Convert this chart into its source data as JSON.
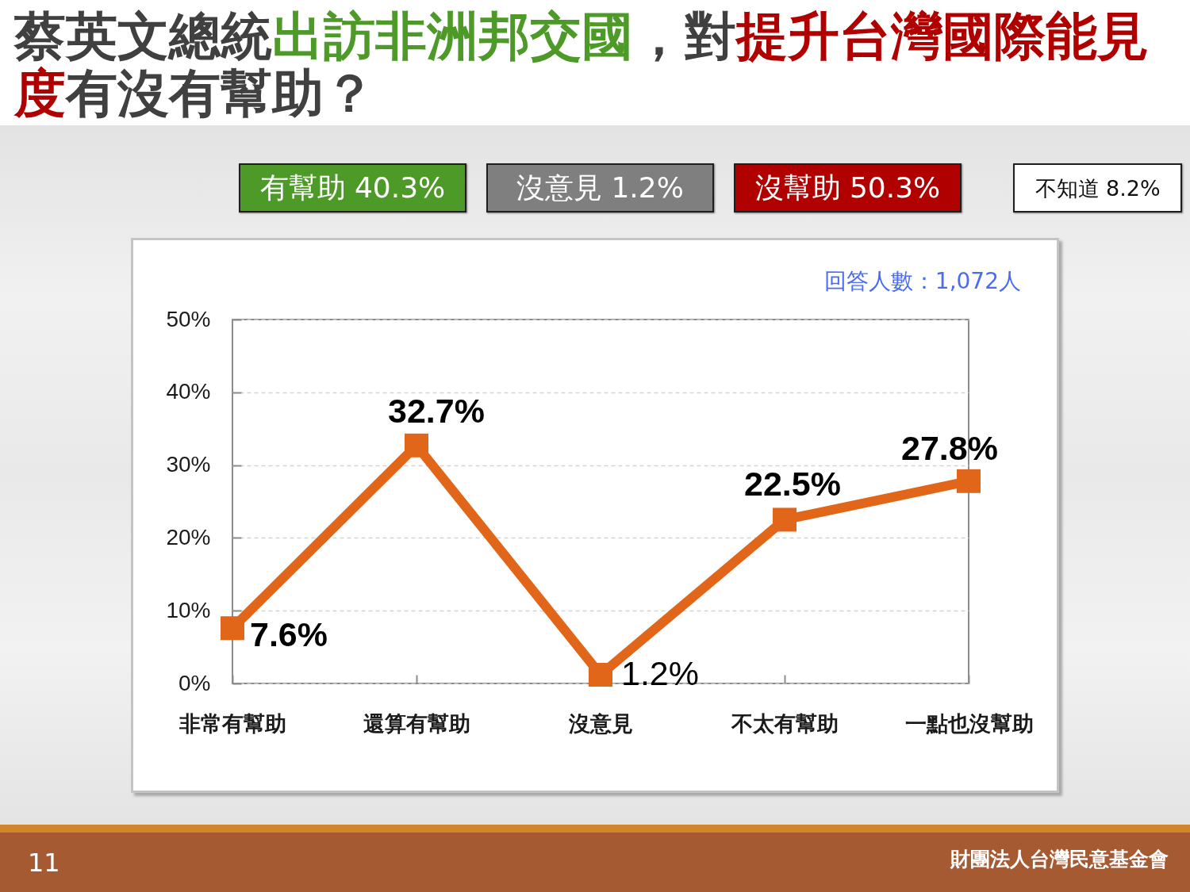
{
  "chart_data": {
    "type": "line",
    "title": "蔡英文總統出訪非洲邦交國，對提升台灣國際能見度有沒有幫助？",
    "categories": [
      "非常有幫助",
      "還算有幫助",
      "沒意見",
      "不太有幫助",
      "一點也沒幫助"
    ],
    "values": [
      7.6,
      32.7,
      1.2,
      22.5,
      27.8
    ],
    "color": "#e2661a",
    "value_labels": [
      "7.6%",
      "32.7%",
      "1.2%",
      "22.5%",
      "27.8%"
    ],
    "ylim": [
      0,
      50
    ],
    "yticks": [
      {
        "value": 0,
        "label": "0%"
      },
      {
        "value": 10,
        "label": "10%"
      },
      {
        "value": 20,
        "label": "20%"
      },
      {
        "value": 30,
        "label": "30%"
      },
      {
        "value": 40,
        "label": "40%"
      },
      {
        "value": 50,
        "label": "50%"
      }
    ],
    "grid": "y",
    "marker": "square",
    "line_style": "solid",
    "annotations": [
      "有幫助 40.3%",
      "沒意見 1.2%",
      "沒幫助 50.3%",
      "不知道 8.2%",
      "回答人數：1,072人",
      "11",
      "財團法人台灣民意基金會"
    ]
  }
}
